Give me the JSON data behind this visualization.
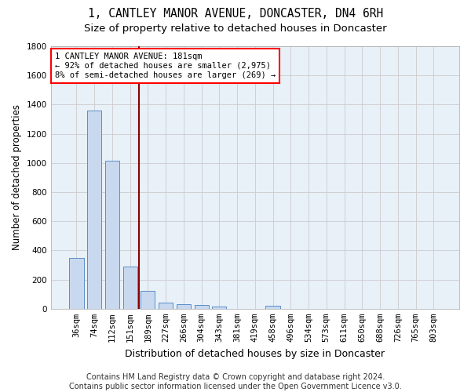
{
  "title": "1, CANTLEY MANOR AVENUE, DONCASTER, DN4 6RH",
  "subtitle": "Size of property relative to detached houses in Doncaster",
  "xlabel": "Distribution of detached houses by size in Doncaster",
  "ylabel": "Number of detached properties",
  "footer": "Contains HM Land Registry data © Crown copyright and database right 2024.\nContains public sector information licensed under the Open Government Licence v3.0.",
  "categories": [
    "36sqm",
    "74sqm",
    "112sqm",
    "151sqm",
    "189sqm",
    "227sqm",
    "266sqm",
    "304sqm",
    "343sqm",
    "381sqm",
    "419sqm",
    "458sqm",
    "496sqm",
    "534sqm",
    "573sqm",
    "611sqm",
    "650sqm",
    "688sqm",
    "726sqm",
    "765sqm",
    "803sqm"
  ],
  "values": [
    350,
    1360,
    1015,
    290,
    125,
    43,
    33,
    24,
    17,
    0,
    0,
    23,
    0,
    0,
    0,
    0,
    0,
    0,
    0,
    0,
    0
  ],
  "bar_color": "#c8d9ef",
  "bar_edge_color": "#5b8dc8",
  "vline_color": "#8b0000",
  "vline_x": 3.5,
  "annotation_text": "1 CANTLEY MANOR AVENUE: 181sqm\n← 92% of detached houses are smaller (2,975)\n8% of semi-detached houses are larger (269) →",
  "annotation_box_edgecolor": "red",
  "ylim": [
    0,
    1800
  ],
  "yticks": [
    0,
    200,
    400,
    600,
    800,
    1000,
    1200,
    1400,
    1600,
    1800
  ],
  "grid_color": "#cccccc",
  "background_color": "#e8f0f8",
  "title_fontsize": 10.5,
  "subtitle_fontsize": 9.5,
  "axis_label_fontsize": 8.5,
  "tick_fontsize": 7.5,
  "footer_fontsize": 7
}
